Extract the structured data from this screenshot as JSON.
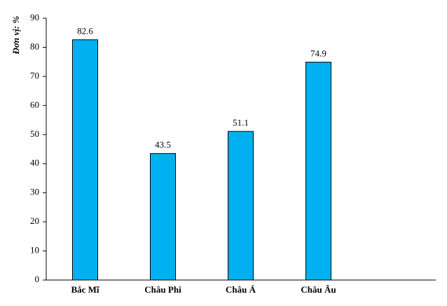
{
  "chart_data": {
    "type": "bar",
    "y_label": "Đơn vị: %",
    "categories": [
      "Bắc Mĩ",
      "Châu Phi",
      "Châu Á",
      "Châu Âu"
    ],
    "values": [
      82.6,
      43.5,
      51.1,
      74.9
    ],
    "color": "#00b0f0",
    "ylim": [
      0,
      90
    ],
    "yticks": [
      0,
      10,
      20,
      30,
      40,
      50,
      60,
      70,
      80,
      90
    ],
    "grid": false
  }
}
